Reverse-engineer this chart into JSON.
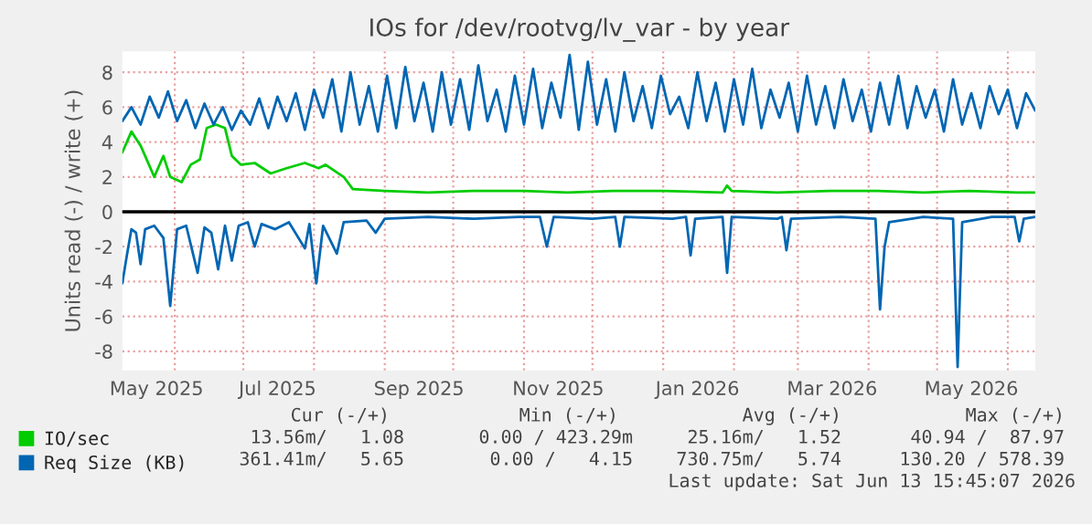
{
  "chart_data": {
    "type": "line",
    "title": "IOs for /dev/rootvg/lv_var - by year",
    "ylabel": "Units read (-) / write (+)",
    "xlim": [
      "2025-05-09",
      "2026-06-13"
    ],
    "ylim": [
      -9.1,
      9.2
    ],
    "yticks": [
      -8,
      -6,
      -4,
      -2,
      0,
      2,
      4,
      6,
      8
    ],
    "xticks": [
      {
        "value": "2025-05-24",
        "label": "May 2025"
      },
      {
        "value": "2025-07-16",
        "label": "Jul 2025"
      },
      {
        "value": "2025-09-16",
        "label": "Sep 2025"
      },
      {
        "value": "2025-11-16",
        "label": "Nov 2025"
      },
      {
        "value": "2026-01-16",
        "label": "Jan 2026"
      },
      {
        "value": "2026-03-16",
        "label": "Mar 2026"
      },
      {
        "value": "2026-05-16",
        "label": "May 2026"
      },
      {
        "value": "2025-06-01",
        "label": null
      },
      {
        "value": "2025-07-01",
        "label": null
      },
      {
        "value": "2025-08-01",
        "label": null
      },
      {
        "value": "2025-09-01",
        "label": null
      },
      {
        "value": "2025-10-01",
        "label": null
      },
      {
        "value": "2025-11-01",
        "label": null
      },
      {
        "value": "2025-12-01",
        "label": null
      },
      {
        "value": "2026-01-01",
        "label": null
      },
      {
        "value": "2026-02-01",
        "label": null
      },
      {
        "value": "2026-03-01",
        "label": null
      },
      {
        "value": "2026-04-01",
        "label": null
      },
      {
        "value": "2026-05-01",
        "label": null
      },
      {
        "value": "2026-06-01",
        "label": null
      }
    ],
    "grid": true,
    "legend": "bottom",
    "marker": "none",
    "line_style": "solid",
    "ref_lines": [
      {
        "axis": "y",
        "value": 0,
        "label": null,
        "color": "#000000"
      }
    ],
    "series": [
      {
        "name": "IO/sec",
        "color": "#00cc00",
        "x": [
          "2025-05-09",
          "2025-05-13",
          "2025-05-17",
          "2025-05-23",
          "2025-05-27",
          "2025-05-30",
          "2025-06-04",
          "2025-06-08",
          "2025-06-12",
          "2025-06-15",
          "2025-06-19",
          "2025-06-23",
          "2025-06-26",
          "2025-06-30",
          "2025-07-06",
          "2025-07-13",
          "2025-07-20",
          "2025-07-28",
          "2025-08-03",
          "2025-08-06",
          "2025-08-14",
          "2025-08-18",
          "2025-09-01",
          "2025-09-20",
          "2025-10-10",
          "2025-11-01",
          "2025-11-20",
          "2025-12-10",
          "2026-01-01",
          "2026-01-27",
          "2026-01-29",
          "2026-01-31",
          "2026-02-20",
          "2026-03-15",
          "2026-04-05",
          "2026-04-25",
          "2026-05-15",
          "2026-06-05",
          "2026-06-13"
        ],
        "values": [
          3.4,
          4.6,
          3.8,
          2.0,
          3.2,
          2.0,
          1.7,
          2.7,
          3.0,
          4.8,
          5.0,
          4.8,
          3.2,
          2.7,
          2.8,
          2.2,
          2.5,
          2.8,
          2.5,
          2.7,
          2.0,
          1.3,
          1.2,
          1.1,
          1.2,
          1.2,
          1.1,
          1.2,
          1.2,
          1.1,
          1.5,
          1.2,
          1.1,
          1.2,
          1.2,
          1.1,
          1.2,
          1.1,
          1.1
        ]
      },
      {
        "name": "Req Size (KB)",
        "color": "#0066b3",
        "x": [
          "2025-05-09",
          "2025-05-13",
          "2025-05-17",
          "2025-05-21",
          "2025-05-25",
          "2025-05-29",
          "2025-06-02",
          "2025-06-06",
          "2025-06-10",
          "2025-06-14",
          "2025-06-18",
          "2025-06-22",
          "2025-06-26",
          "2025-06-30",
          "2025-07-04",
          "2025-07-08",
          "2025-07-12",
          "2025-07-16",
          "2025-07-20",
          "2025-07-24",
          "2025-07-28",
          "2025-08-01",
          "2025-08-05",
          "2025-08-09",
          "2025-08-13",
          "2025-08-17",
          "2025-08-21",
          "2025-08-25",
          "2025-08-29",
          "2025-09-02",
          "2025-09-06",
          "2025-09-10",
          "2025-09-14",
          "2025-09-18",
          "2025-09-22",
          "2025-09-26",
          "2025-09-30",
          "2025-10-04",
          "2025-10-08",
          "2025-10-12",
          "2025-10-16",
          "2025-10-20",
          "2025-10-24",
          "2025-10-28",
          "2025-11-01",
          "2025-11-05",
          "2025-11-09",
          "2025-11-13",
          "2025-11-17",
          "2025-11-21",
          "2025-11-25",
          "2025-11-29",
          "2025-12-03",
          "2025-12-07",
          "2025-12-11",
          "2025-12-15",
          "2025-12-19",
          "2025-12-23",
          "2025-12-27",
          "2025-12-31",
          "2026-01-04",
          "2026-01-08",
          "2026-01-12",
          "2026-01-16",
          "2026-01-20",
          "2026-01-24",
          "2026-01-28",
          "2026-02-01",
          "2026-02-05",
          "2026-02-09",
          "2026-02-13",
          "2026-02-17",
          "2026-02-21",
          "2026-02-25",
          "2026-03-01",
          "2026-03-05",
          "2026-03-09",
          "2026-03-13",
          "2026-03-17",
          "2026-03-21",
          "2026-03-25",
          "2026-03-29",
          "2026-04-02",
          "2026-04-06",
          "2026-04-10",
          "2026-04-14",
          "2026-04-18",
          "2026-04-22",
          "2026-04-26",
          "2026-04-30",
          "2026-05-04",
          "2026-05-08",
          "2026-05-12",
          "2026-05-16",
          "2026-05-20",
          "2026-05-24",
          "2026-05-28",
          "2026-06-01",
          "2026-06-05",
          "2026-06-09",
          "2026-06-13"
        ],
        "values": [
          5.2,
          6.0,
          5.0,
          6.6,
          5.4,
          6.9,
          5.2,
          6.4,
          4.8,
          6.2,
          5.0,
          6.0,
          4.7,
          5.8,
          5.0,
          6.5,
          4.8,
          6.6,
          5.2,
          6.8,
          4.7,
          7.0,
          5.4,
          7.6,
          4.6,
          8.0,
          5.0,
          7.2,
          4.6,
          7.8,
          4.8,
          8.3,
          5.2,
          7.4,
          4.6,
          8.0,
          5.0,
          7.6,
          4.7,
          8.4,
          5.2,
          7.0,
          4.6,
          7.8,
          5.0,
          8.2,
          4.8,
          7.4,
          5.4,
          9.0,
          4.7,
          8.6,
          5.0,
          7.6,
          4.6,
          8.0,
          5.2,
          7.2,
          4.8,
          7.8,
          5.6,
          6.6,
          4.8,
          8.0,
          5.2,
          7.4,
          4.6,
          7.6,
          5.0,
          8.2,
          4.8,
          7.0,
          5.4,
          7.4,
          4.6,
          7.8,
          5.0,
          7.2,
          4.8,
          7.6,
          5.2,
          7.0,
          4.6,
          7.4,
          5.0,
          7.8,
          4.8,
          7.2,
          5.4,
          7.0,
          4.6,
          7.6,
          5.0,
          6.8,
          4.8,
          7.2,
          5.6,
          7.0,
          4.8,
          6.8,
          5.8
        ]
      },
      {
        "color": "#0066b3",
        "x": [
          "2025-05-09",
          "2025-05-11",
          "2025-05-13",
          "2025-05-15",
          "2025-05-17",
          "2025-05-19",
          "2025-05-23",
          "2025-05-27",
          "2025-05-30",
          "2025-06-02",
          "2025-06-06",
          "2025-06-11",
          "2025-06-14",
          "2025-06-17",
          "2025-06-20",
          "2025-06-23",
          "2025-06-26",
          "2025-06-29",
          "2025-07-03",
          "2025-07-06",
          "2025-07-09",
          "2025-07-15",
          "2025-07-21",
          "2025-07-28",
          "2025-07-30",
          "2025-08-02",
          "2025-08-05",
          "2025-08-11",
          "2025-08-14",
          "2025-08-24",
          "2025-08-28",
          "2025-09-01",
          "2025-09-20",
          "2025-10-10",
          "2025-10-30",
          "2025-11-08",
          "2025-11-11",
          "2025-11-14",
          "2025-12-01",
          "2025-12-11",
          "2025-12-13",
          "2025-12-15",
          "2026-01-05",
          "2026-01-11",
          "2026-01-13",
          "2026-01-15",
          "2026-01-27",
          "2026-01-29",
          "2026-01-31",
          "2026-02-20",
          "2026-02-22",
          "2026-02-24",
          "2026-02-26",
          "2026-03-20",
          "2026-04-04",
          "2026-04-06",
          "2026-04-08",
          "2026-04-10",
          "2026-04-25",
          "2026-05-08",
          "2026-05-10",
          "2026-05-12",
          "2026-05-25",
          "2026-06-04",
          "2026-06-06",
          "2026-06-08",
          "2026-06-13"
        ],
        "values": [
          -4.1,
          -2.5,
          -1.0,
          -1.2,
          -3.0,
          -1.0,
          -0.8,
          -1.5,
          -5.4,
          -1.0,
          -0.8,
          -3.5,
          -0.9,
          -1.2,
          -3.3,
          -0.8,
          -2.8,
          -0.8,
          -0.6,
          -2.0,
          -0.7,
          -1.0,
          -0.6,
          -2.1,
          -0.7,
          -4.1,
          -0.8,
          -2.4,
          -0.6,
          -0.5,
          -1.2,
          -0.4,
          -0.3,
          -0.4,
          -0.3,
          -0.3,
          -2.0,
          -0.3,
          -0.4,
          -0.3,
          -2.0,
          -0.3,
          -0.4,
          -0.3,
          -2.5,
          -0.4,
          -0.3,
          -3.5,
          -0.3,
          -0.4,
          -0.3,
          -2.2,
          -0.4,
          -0.3,
          -0.4,
          -5.6,
          -2.0,
          -0.6,
          -0.3,
          -0.4,
          -8.9,
          -0.6,
          -0.3,
          -0.3,
          -1.7,
          -0.4,
          -0.3
        ]
      }
    ],
    "annotations": [
      "Cur (-/+)",
      "Min (-/+)",
      "Avg (-/+)",
      "Max (-/+)",
      "13.56m/   1.08",
      "0.00 / 423.29m",
      "25.16m/   1.52",
      "40.94 /  87.97",
      "361.41m/   5.65",
      "0.00 /   4.15",
      "730.75m/   5.74",
      "130.20 / 578.39",
      "Last update: Sat Jun 13 15:45:07 2026"
    ]
  }
}
